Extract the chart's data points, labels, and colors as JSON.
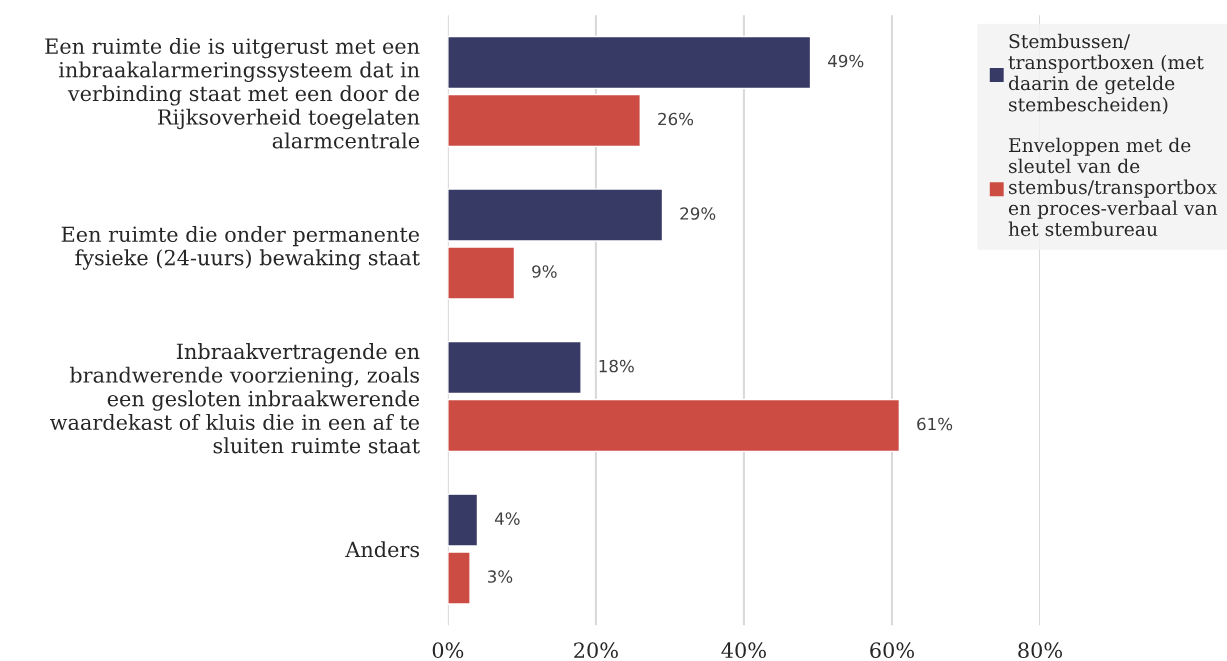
{
  "chart_data": {
    "type": "bar",
    "orientation": "horizontal",
    "categories": [
      "Een ruimte die is uitgerust met een\ninbraakalarmeringssysteem dat in\nverbinding staat met een door de\nRijksoverheid toegelaten\nalarmcentrale",
      "Een ruimte die onder permanente\nfysieke (24-uurs) bewaking staat",
      "Inbraakvertragende en\nbrandwerende voorziening, zoals\neen gesloten inbraakwerende\nwaardekast of kluis die in een af te\nsluiten ruimte staat",
      "Anders"
    ],
    "series": [
      {
        "name": "Stembussen/\ntransportboxen (met\ndaarin de getelde\nstembescheiden)",
        "color": "#383a66",
        "values": [
          49,
          29,
          18,
          4
        ],
        "value_labels": [
          "49%",
          "29%",
          "18%",
          "4%"
        ]
      },
      {
        "name": "Enveloppen met de\nsleutel van de\nstembus/transportbox\nen proces-verbaal van\nhet stembureau",
        "color": "#cc4c43",
        "values": [
          26,
          9,
          61,
          3
        ],
        "value_labels": [
          "26%",
          "9%",
          "61%",
          "3%"
        ]
      }
    ],
    "xlim": [
      0,
      80
    ],
    "xticks": [
      {
        "value": 0,
        "label": "0%"
      },
      {
        "value": 20,
        "label": "20%"
      },
      {
        "value": 40,
        "label": "40%"
      },
      {
        "value": 60,
        "label": "60%"
      },
      {
        "value": 80,
        "label": "80%"
      }
    ],
    "grid": "x",
    "legend": "top right"
  }
}
